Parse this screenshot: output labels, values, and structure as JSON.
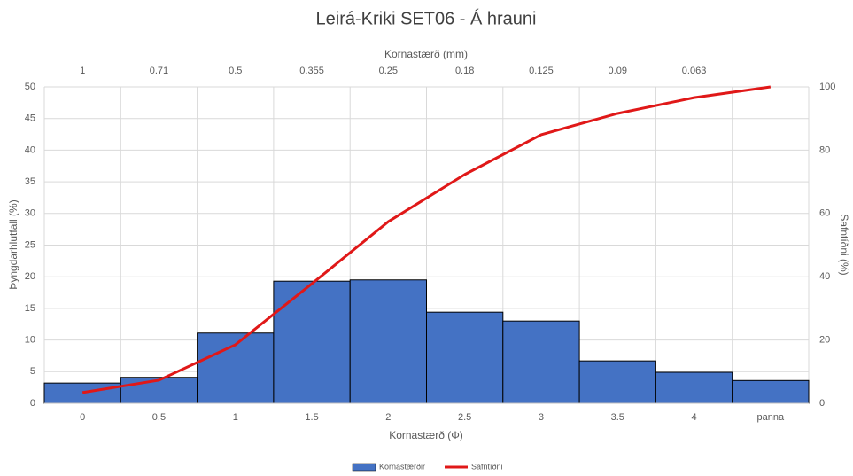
{
  "chart_data": {
    "type": "bar",
    "title": "Leirá-Kriki SET06 - Á hrauni",
    "x_label": "Kornastærð (Φ)",
    "x2_label": "Kornastærð (mm)",
    "y_label": "Þyngdarhlutfall (%)",
    "y2_label": "Safntíðni (%)",
    "categories": [
      "0",
      "0.5",
      "1",
      "1.5",
      "2",
      "2.5",
      "3",
      "3.5",
      "4",
      "panna"
    ],
    "top_categories": [
      "1",
      "0.71",
      "0.5",
      "0.355",
      "0.25",
      "0.18",
      "0.125",
      "0.09",
      "0.063",
      null
    ],
    "series": [
      {
        "name": "Kornastærðir",
        "color": "#4472c4",
        "values": [
          3.2,
          4.1,
          11.1,
          19.3,
          19.5,
          14.4,
          13.0,
          6.7,
          4.9,
          3.6
        ]
      },
      {
        "name": "Safntíðni",
        "color": "#e01818",
        "axis": "y2",
        "values": [
          3.4,
          7.3,
          18.5,
          37.8,
          57.4,
          72.3,
          84.9,
          91.6,
          96.6,
          100
        ]
      }
    ],
    "ylim": [
      0,
      50
    ],
    "yticks": [
      0,
      5,
      10,
      15,
      20,
      25,
      30,
      35,
      40,
      45,
      50
    ],
    "y2lim": [
      0,
      100
    ],
    "y2ticks": [
      0,
      20,
      40,
      60,
      80,
      100
    ],
    "grid": true,
    "legend": "bottom"
  }
}
